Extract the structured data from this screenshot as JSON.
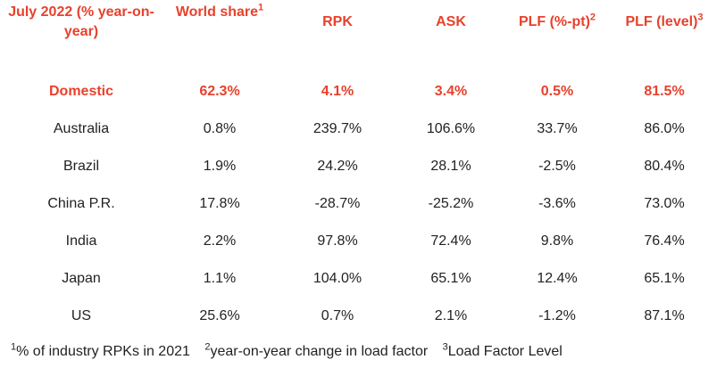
{
  "table": {
    "headers": [
      {
        "text": "July 2022 (% year-on-year)",
        "sup": ""
      },
      {
        "text": "World share",
        "sup": "1"
      },
      {
        "text": "RPK",
        "sup": ""
      },
      {
        "text": "ASK",
        "sup": ""
      },
      {
        "text": "PLF (%-pt)",
        "sup": "2"
      },
      {
        "text": "PLF (level)",
        "sup": "3"
      }
    ],
    "rows": [
      {
        "cells": [
          "Domestic",
          "62.3%",
          "4.1%",
          "3.4%",
          "0.5%",
          "81.5%"
        ]
      },
      {
        "cells": [
          "Australia",
          "0.8%",
          "239.7%",
          "106.6%",
          "33.7%",
          "86.0%"
        ]
      },
      {
        "cells": [
          "Brazil",
          "1.9%",
          "24.2%",
          "28.1%",
          "-2.5%",
          "80.4%"
        ]
      },
      {
        "cells": [
          "China P.R.",
          "17.8%",
          "-28.7%",
          "-25.2%",
          "-3.6%",
          "73.0%"
        ]
      },
      {
        "cells": [
          "India",
          "2.2%",
          "97.8%",
          "72.4%",
          "9.8%",
          "76.4%"
        ]
      },
      {
        "cells": [
          "Japan",
          "1.1%",
          "104.0%",
          "65.1%",
          "12.4%",
          "65.1%"
        ]
      },
      {
        "cells": [
          "US",
          "25.6%",
          "0.7%",
          "2.1%",
          "-1.2%",
          "87.1%"
        ]
      }
    ]
  },
  "footnotes": [
    {
      "sup": "1",
      "text": "% of industry RPKs in 2021"
    },
    {
      "sup": "2",
      "text": "year-on-year change in load factor"
    },
    {
      "sup": "3",
      "text": "Load Factor Level"
    }
  ],
  "colors": {
    "accent": "#e8412c",
    "text": "#222222"
  }
}
